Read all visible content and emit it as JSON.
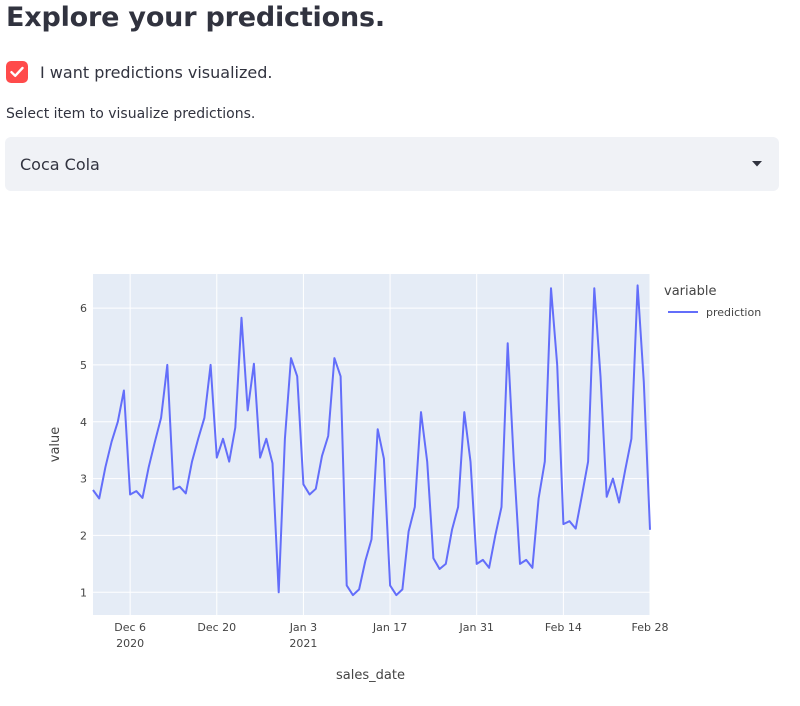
{
  "page": {
    "title": "Explore your predictions."
  },
  "checkbox": {
    "label": "I want predictions visualized.",
    "checked": true,
    "color": "#ff4b4b"
  },
  "select": {
    "label": "Select item to visualize predictions.",
    "value": "Coca Cola",
    "arrow_icon": "caret-down-icon"
  },
  "chart_data": {
    "type": "line",
    "xlabel": "sales_date",
    "ylabel": "value",
    "legend_title": "variable",
    "legend_placement": "top-right",
    "grid": true,
    "plot_bgcolor": "#e5ecf6",
    "series_color": "#636efa",
    "x_range": [
      "2020-11-30",
      "2021-02-28"
    ],
    "ylim": [
      0.6,
      6.6
    ],
    "y_ticks": [
      1,
      2,
      3,
      4,
      5,
      6
    ],
    "x_ticks": [
      {
        "date": "2020-12-06",
        "label": "Dec 6",
        "sublabel": "2020"
      },
      {
        "date": "2020-12-20",
        "label": "Dec 20",
        "sublabel": ""
      },
      {
        "date": "2021-01-03",
        "label": "Jan 3",
        "sublabel": "2021"
      },
      {
        "date": "2021-01-17",
        "label": "Jan 17",
        "sublabel": ""
      },
      {
        "date": "2021-01-31",
        "label": "Jan 31",
        "sublabel": ""
      },
      {
        "date": "2021-02-14",
        "label": "Feb 14",
        "sublabel": ""
      },
      {
        "date": "2021-02-28",
        "label": "Feb 28",
        "sublabel": ""
      }
    ],
    "series": [
      {
        "name": "prediction",
        "x": [
          "2020-11-30",
          "2020-12-01",
          "2020-12-02",
          "2020-12-03",
          "2020-12-04",
          "2020-12-05",
          "2020-12-06",
          "2020-12-07",
          "2020-12-08",
          "2020-12-09",
          "2020-12-10",
          "2020-12-11",
          "2020-12-12",
          "2020-12-13",
          "2020-12-14",
          "2020-12-15",
          "2020-12-16",
          "2020-12-17",
          "2020-12-18",
          "2020-12-19",
          "2020-12-20",
          "2020-12-21",
          "2020-12-22",
          "2020-12-23",
          "2020-12-24",
          "2020-12-25",
          "2020-12-26",
          "2020-12-27",
          "2020-12-28",
          "2020-12-29",
          "2020-12-30",
          "2020-12-31",
          "2021-01-01",
          "2021-01-02",
          "2021-01-03",
          "2021-01-04",
          "2021-01-05",
          "2021-01-06",
          "2021-01-07",
          "2021-01-08",
          "2021-01-09",
          "2021-01-10",
          "2021-01-11",
          "2021-01-12",
          "2021-01-13",
          "2021-01-14",
          "2021-01-15",
          "2021-01-16",
          "2021-01-17",
          "2021-01-18",
          "2021-01-19",
          "2021-01-20",
          "2021-01-21",
          "2021-01-22",
          "2021-01-23",
          "2021-01-24",
          "2021-01-25",
          "2021-01-26",
          "2021-01-27",
          "2021-01-28",
          "2021-01-29",
          "2021-01-30",
          "2021-01-31",
          "2021-02-01",
          "2021-02-02",
          "2021-02-03",
          "2021-02-04",
          "2021-02-05",
          "2021-02-06",
          "2021-02-07",
          "2021-02-08",
          "2021-02-09",
          "2021-02-10",
          "2021-02-11",
          "2021-02-12",
          "2021-02-13",
          "2021-02-14",
          "2021-02-15",
          "2021-02-16",
          "2021-02-17",
          "2021-02-18",
          "2021-02-19",
          "2021-02-20",
          "2021-02-21",
          "2021-02-22",
          "2021-02-23",
          "2021-02-24",
          "2021-02-25",
          "2021-02-26",
          "2021-02-27",
          "2021-02-28"
        ],
        "values": [
          2.8,
          2.65,
          3.2,
          3.65,
          4.0,
          4.55,
          2.72,
          2.78,
          2.66,
          3.2,
          3.65,
          4.07,
          5.0,
          2.81,
          2.86,
          2.74,
          3.3,
          3.7,
          4.07,
          5.0,
          3.37,
          3.7,
          3.3,
          3.9,
          5.83,
          4.2,
          5.02,
          3.37,
          3.7,
          3.27,
          1.0,
          3.7,
          5.12,
          4.8,
          2.9,
          2.72,
          2.82,
          3.4,
          3.75,
          5.12,
          4.8,
          1.12,
          0.95,
          1.05,
          1.55,
          1.93,
          3.87,
          3.35,
          1.12,
          0.95,
          1.05,
          2.07,
          2.5,
          4.17,
          3.3,
          1.6,
          1.41,
          1.5,
          2.1,
          2.5,
          4.17,
          3.3,
          1.5,
          1.57,
          1.43,
          2.0,
          2.5,
          5.38,
          3.3,
          1.5,
          1.57,
          1.43,
          2.65,
          3.3,
          6.35,
          5.0,
          2.2,
          2.25,
          2.12,
          2.7,
          3.3,
          6.35,
          4.8,
          2.68,
          3.0,
          2.58,
          3.15,
          3.7,
          6.4,
          4.7,
          2.1
        ]
      }
    ]
  }
}
